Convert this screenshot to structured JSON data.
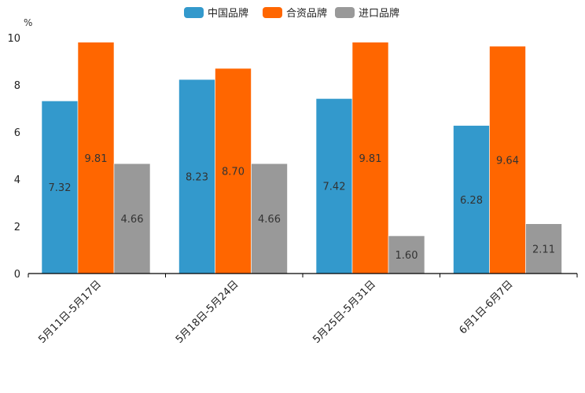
{
  "chart_data": {
    "type": "bar",
    "title": "",
    "xlabel": "",
    "ylabel": "%",
    "ylim": [
      0,
      10
    ],
    "yticks": [
      "0",
      "2",
      "4",
      "6",
      "8",
      "10"
    ],
    "categories": [
      "5月11日-5月17日",
      "5月18日-5月24日",
      "5月25日-5月31日",
      "6月1日-6月7日"
    ],
    "series": [
      {
        "name": "中国品牌",
        "color": "#3399cc",
        "values": [
          7.32,
          8.23,
          7.42,
          6.28
        ],
        "labels": [
          "7.32",
          "8.23",
          "7.42",
          "6.28"
        ]
      },
      {
        "name": "合资品牌",
        "color": "#ff6600",
        "values": [
          9.81,
          8.7,
          9.81,
          9.64
        ],
        "labels": [
          "9.81",
          "8.70",
          "9.81",
          "9.64"
        ]
      },
      {
        "name": "进口品牌",
        "color": "#999999",
        "values": [
          4.66,
          4.66,
          1.6,
          2.11
        ],
        "labels": [
          "4.66",
          "4.66",
          "1.60",
          "2.11"
        ]
      }
    ],
    "legend_position": "top-center",
    "grid": false
  }
}
